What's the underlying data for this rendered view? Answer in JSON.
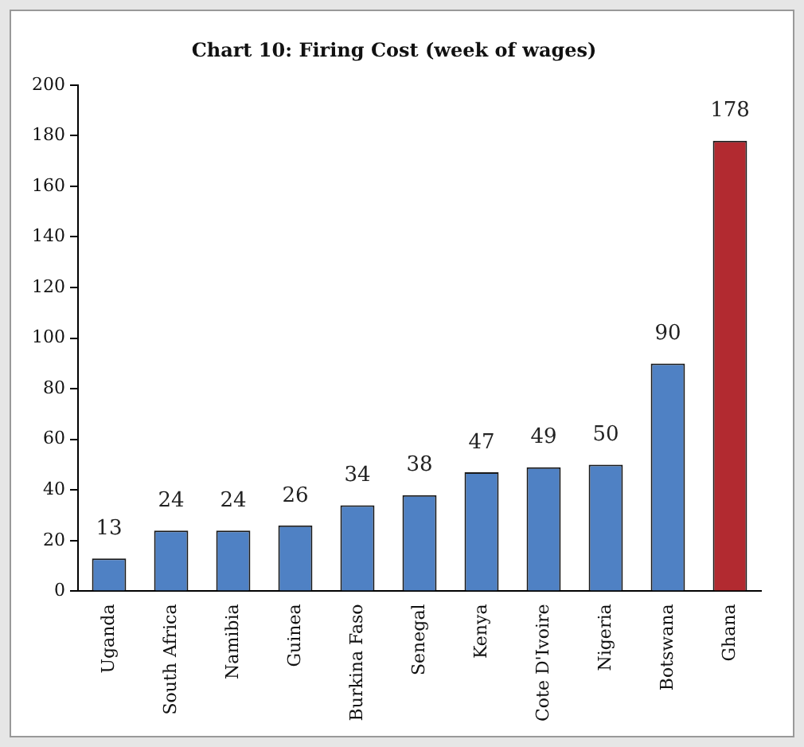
{
  "chart_data": {
    "type": "bar",
    "title": "Chart 10: Firing Cost (week of wages)",
    "categories": [
      "Uganda",
      "South Africa",
      "Namibia",
      "Guinea",
      "Burkina Faso",
      "Senegal",
      "Kenya",
      "Cote D'Ivoire",
      "Nigeria",
      "Botswana",
      "Ghana"
    ],
    "values": [
      13,
      24,
      24,
      26,
      34,
      38,
      47,
      49,
      50,
      90,
      178
    ],
    "colors": [
      "#4f81c4",
      "#4f81c4",
      "#4f81c4",
      "#4f81c4",
      "#4f81c4",
      "#4f81c4",
      "#4f81c4",
      "#4f81c4",
      "#4f81c4",
      "#4f81c4",
      "#b22a30"
    ],
    "ylim": [
      0,
      200
    ],
    "yticks": [
      0,
      20,
      40,
      60,
      80,
      100,
      120,
      140,
      160,
      180,
      200
    ],
    "grid": false,
    "legend": false,
    "data_labels": true
  }
}
